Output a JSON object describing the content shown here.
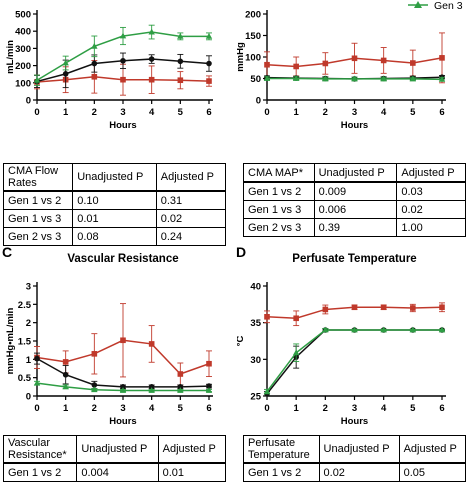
{
  "legend": {
    "label": "Gen 3"
  },
  "colors": {
    "gen1": "#c0392b",
    "gen2": "#111111",
    "gen3": "#2e9e44"
  },
  "panel_labels": {
    "c": "C",
    "d": "D"
  },
  "chart_data": [
    {
      "type": "line",
      "title": "",
      "xlabel": "Hours",
      "ylabel": "mL/min",
      "x": [
        0,
        1,
        2,
        3,
        4,
        5,
        6
      ],
      "ylim": [
        0,
        500
      ],
      "yticks": [
        0,
        100,
        200,
        300,
        400,
        500
      ],
      "series": [
        {
          "key": "gen1",
          "color": "#c0392b",
          "values": [
            105,
            118,
            135,
            118,
            118,
            115,
            110
          ],
          "err": [
            40,
            75,
            95,
            90,
            80,
            50,
            30
          ]
        },
        {
          "key": "gen2",
          "color": "#111111",
          "values": [
            108,
            152,
            212,
            228,
            238,
            225,
            212
          ],
          "err": [
            35,
            80,
            50,
            45,
            25,
            40,
            45
          ]
        },
        {
          "key": "gen3",
          "color": "#2e9e44",
          "values": [
            115,
            215,
            312,
            372,
            395,
            370,
            370
          ],
          "err": [
            30,
            40,
            60,
            50,
            40,
            20,
            20
          ]
        }
      ]
    },
    {
      "type": "line",
      "title": "",
      "xlabel": "Hours",
      "ylabel": "mmHg",
      "x": [
        0,
        1,
        2,
        3,
        4,
        5,
        6
      ],
      "ylim": [
        0,
        200
      ],
      "yticks": [
        0,
        50,
        100,
        150,
        200
      ],
      "series": [
        {
          "key": "gen1",
          "color": "#c0392b",
          "values": [
            82,
            78,
            85,
            97,
            92,
            86,
            98
          ],
          "err": [
            30,
            22,
            25,
            35,
            30,
            30,
            58
          ]
        },
        {
          "key": "gen2",
          "color": "#111111",
          "values": [
            52,
            51,
            50,
            49,
            50,
            51,
            53
          ],
          "err": [
            4,
            4,
            4,
            4,
            4,
            4,
            4
          ]
        },
        {
          "key": "gen3",
          "color": "#2e9e44",
          "values": [
            50,
            50,
            49,
            49,
            49,
            49,
            48
          ],
          "err": [
            4,
            4,
            4,
            4,
            4,
            4,
            4
          ]
        }
      ]
    },
    {
      "type": "line",
      "title": "Vascular Resistance",
      "xlabel": "Hours",
      "ylabel": "mmHg•mL/min",
      "x": [
        0,
        1,
        2,
        3,
        4,
        5,
        6
      ],
      "ylim": [
        0,
        3
      ],
      "yticks": [
        0,
        0.5,
        1.0,
        1.5,
        2.0,
        2.5,
        3.0
      ],
      "series": [
        {
          "key": "gen1",
          "color": "#c0392b",
          "values": [
            1.05,
            0.93,
            1.15,
            1.52,
            1.42,
            0.6,
            0.88
          ],
          "err": [
            0.3,
            0.3,
            0.55,
            1.0,
            0.5,
            0.3,
            0.35
          ]
        },
        {
          "key": "gen2",
          "color": "#111111",
          "values": [
            1.02,
            0.58,
            0.3,
            0.25,
            0.25,
            0.25,
            0.27
          ],
          "err": [
            0.15,
            0.25,
            0.1,
            0.05,
            0.05,
            0.05,
            0.05
          ]
        },
        {
          "key": "gen3",
          "color": "#2e9e44",
          "values": [
            0.35,
            0.25,
            0.17,
            0.15,
            0.15,
            0.15,
            0.15
          ],
          "err": [
            0.05,
            0.05,
            0.03,
            0.03,
            0.03,
            0.03,
            0.03
          ]
        }
      ]
    },
    {
      "type": "line",
      "title": "Perfusate Temperature",
      "xlabel": "Hours",
      "ylabel": "°C",
      "x": [
        0,
        1,
        2,
        3,
        4,
        5,
        6
      ],
      "ylim": [
        25,
        40
      ],
      "yticks": [
        25,
        30,
        35,
        40
      ],
      "series": [
        {
          "key": "gen1",
          "color": "#c0392b",
          "values": [
            35.8,
            35.6,
            36.8,
            37.1,
            37.1,
            37.0,
            37.1
          ],
          "err": [
            0.8,
            1.0,
            0.6,
            0.3,
            0.3,
            0.5,
            0.6
          ]
        },
        {
          "key": "gen2",
          "color": "#111111",
          "values": [
            25.3,
            30.3,
            34.0,
            34.0,
            34.0,
            34.0,
            34.0
          ],
          "err": [
            0.3,
            1.5,
            0.2,
            0.1,
            0.1,
            0.1,
            0.1
          ]
        },
        {
          "key": "gen3",
          "color": "#2e9e44",
          "values": [
            25.6,
            30.9,
            34.0,
            34.0,
            34.0,
            34.0,
            34.0
          ],
          "err": [
            0.3,
            1.2,
            0.2,
            0.1,
            0.1,
            0.1,
            0.1
          ]
        }
      ]
    }
  ],
  "tables": {
    "flow": {
      "header": [
        "CMA Flow\nRates",
        "Unadjusted P",
        "Adjusted P"
      ],
      "rows": [
        [
          "Gen 1 vs 2",
          "0.10",
          "0.31"
        ],
        [
          "Gen 1 vs 3",
          "0.01",
          "0.02"
        ],
        [
          "Gen 2 vs 3",
          "0.08",
          "0.24"
        ]
      ]
    },
    "map": {
      "header": [
        "CMA MAP*",
        "Unadjusted P",
        "Adjusted P"
      ],
      "rows": [
        [
          "Gen 1 vs 2",
          "0.009",
          "0.03"
        ],
        [
          "Gen 1 vs 3",
          "0.006",
          "0.02"
        ],
        [
          "Gen 2 vs 3",
          "0.39",
          "1.00"
        ]
      ]
    },
    "vr": {
      "header": [
        "Vascular\nResistance*",
        "Unadjusted P",
        "Adjusted P"
      ],
      "rows": [
        [
          "Gen 1 vs 2",
          "0.004",
          "0.01"
        ]
      ]
    },
    "temp": {
      "header": [
        "Perfusate\nTemperature",
        "Unadjusted P",
        "Adjusted P"
      ],
      "rows": [
        [
          "Gen 1 vs 2",
          "0.02",
          "0.05"
        ]
      ]
    }
  }
}
